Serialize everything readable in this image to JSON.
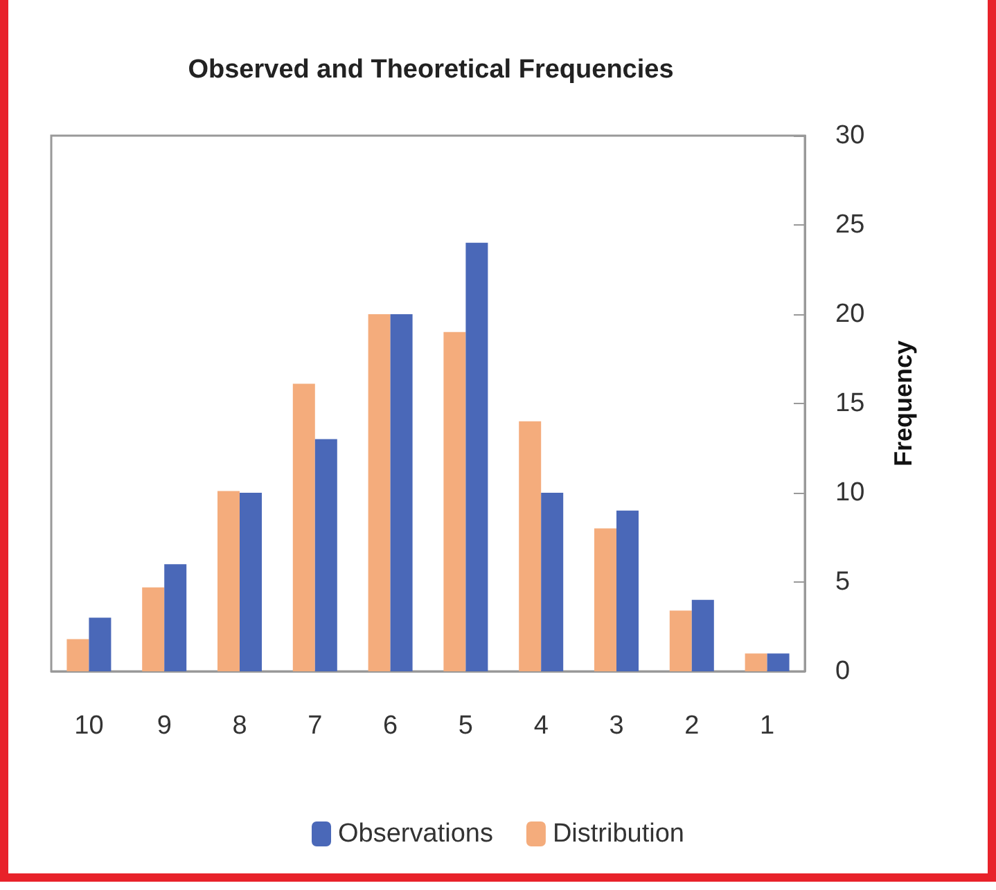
{
  "chart_data": {
    "type": "bar",
    "title": "Observed and Theoretical Frequencies",
    "ylabel": "Frequency",
    "categories": [
      "10",
      "9",
      "8",
      "7",
      "6",
      "5",
      "4",
      "3",
      "2",
      "1"
    ],
    "series": [
      {
        "name": "Distribution",
        "color": "#f4ac7c",
        "values": [
          1.8,
          4.7,
          10.1,
          16.1,
          20,
          19,
          14,
          8,
          3.4,
          1
        ]
      },
      {
        "name": "Observations",
        "color": "#4a68b8",
        "values": [
          3,
          6,
          10,
          13,
          20,
          24,
          10,
          9,
          4,
          1
        ]
      }
    ],
    "ylim": [
      0,
      30
    ],
    "yticks": [
      0,
      5,
      10,
      15,
      20,
      25,
      30
    ],
    "grid": false,
    "legend": "bottom"
  }
}
